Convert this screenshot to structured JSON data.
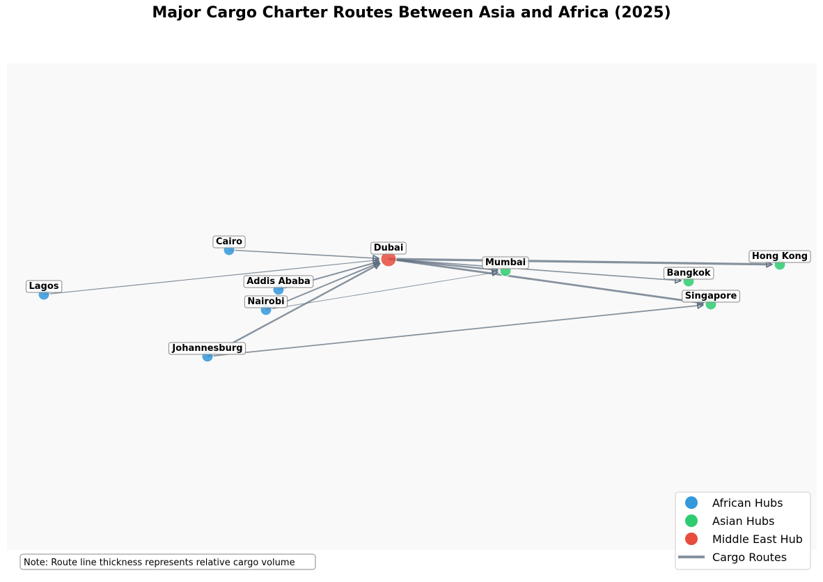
{
  "title": "Major Cargo Charter Routes Between Asia and Africa (2025)",
  "colors": {
    "african": "#3498db",
    "asian": "#2ecc71",
    "middle_east": "#e74c3c",
    "route": "#5d6d7e",
    "panel": "#f9f9f9"
  },
  "nodes": [
    {
      "id": "cairo",
      "label": "Cairo",
      "group": "african"
    },
    {
      "id": "lagos",
      "label": "Lagos",
      "group": "african"
    },
    {
      "id": "addis",
      "label": "Addis Ababa",
      "group": "african"
    },
    {
      "id": "nairobi",
      "label": "Nairobi",
      "group": "african"
    },
    {
      "id": "johannesburg",
      "label": "Johannesburg",
      "group": "african"
    },
    {
      "id": "dubai",
      "label": "Dubai",
      "group": "middle_east"
    },
    {
      "id": "mumbai",
      "label": "Mumbai",
      "group": "asian"
    },
    {
      "id": "bangkok",
      "label": "Bangkok",
      "group": "asian"
    },
    {
      "id": "hongkong",
      "label": "Hong Kong",
      "group": "asian"
    },
    {
      "id": "singapore",
      "label": "Singapore",
      "group": "asian"
    }
  ],
  "edges": [
    {
      "from": "cairo",
      "to": "dubai",
      "volume": 2
    },
    {
      "from": "lagos",
      "to": "dubai",
      "volume": 1.5
    },
    {
      "from": "addis",
      "to": "dubai",
      "volume": 2.5
    },
    {
      "from": "nairobi",
      "to": "dubai",
      "volume": 2.5
    },
    {
      "from": "nairobi",
      "to": "mumbai",
      "volume": 1.2
    },
    {
      "from": "johannesburg",
      "to": "dubai",
      "volume": 3
    },
    {
      "from": "johannesburg",
      "to": "singapore",
      "volume": 2.2
    },
    {
      "from": "dubai",
      "to": "mumbai",
      "volume": 3
    },
    {
      "from": "dubai",
      "to": "bangkok",
      "volume": 2
    },
    {
      "from": "dubai",
      "to": "hongkong",
      "volume": 4
    },
    {
      "from": "dubai",
      "to": "singapore",
      "volume": 3.5
    }
  ],
  "legend": [
    {
      "label": "African Hubs",
      "type": "dot",
      "group": "african"
    },
    {
      "label": "Asian Hubs",
      "type": "dot",
      "group": "asian"
    },
    {
      "label": "Middle East Hub",
      "type": "dot",
      "group": "middle_east"
    },
    {
      "label": "Cargo Routes",
      "type": "line"
    }
  ],
  "note": "Note: Route line thickness represents relative cargo volume"
}
